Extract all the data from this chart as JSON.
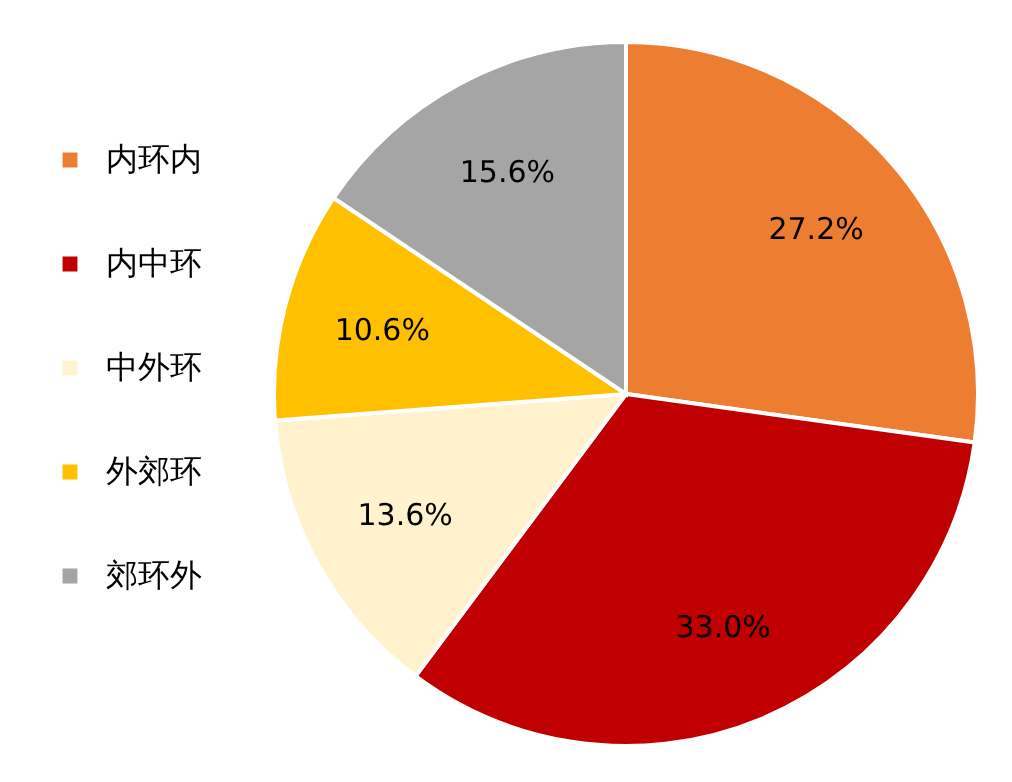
{
  "chart_data": {
    "type": "pie",
    "categories": [
      "内环内",
      "内中环",
      "中外环",
      "外郊环",
      "郊环外"
    ],
    "values": [
      27.2,
      33.0,
      13.6,
      10.6,
      15.6
    ],
    "colors": [
      "#ed7d31",
      "#c00000",
      "#fff2cc",
      "#ffc000",
      "#a5a5a5"
    ],
    "value_labels": [
      "27.2%",
      "33.0%",
      "13.6%",
      "10.6%",
      "15.6%"
    ],
    "legend": "left"
  }
}
